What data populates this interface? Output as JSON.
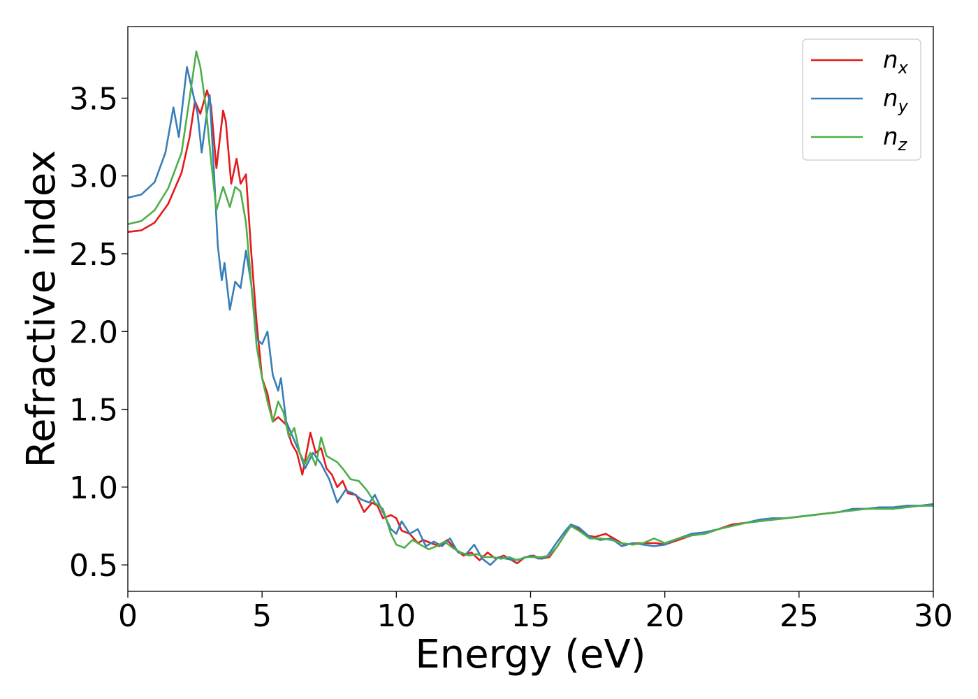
{
  "chart_data": {
    "type": "line",
    "xlabel": "Energy (eV)",
    "ylabel": "Refractive index",
    "xlim": [
      0,
      30
    ],
    "ylim": [
      0.33,
      3.96
    ],
    "xticks": [
      0,
      5,
      10,
      15,
      20,
      25,
      30
    ],
    "xtick_labels": [
      "0",
      "5",
      "10",
      "15",
      "20",
      "25",
      "30"
    ],
    "yticks": [
      0.5,
      1.0,
      1.5,
      2.0,
      2.5,
      3.0,
      3.5
    ],
    "ytick_labels": [
      "0.5",
      "1.0",
      "1.5",
      "2.0",
      "2.5",
      "3.0",
      "3.5"
    ],
    "grid": false,
    "legend_position": "top-right",
    "series": [
      {
        "name": "n_x",
        "label_base": "n",
        "label_sub": "x",
        "color": "#e41a1c",
        "points": [
          [
            0,
            2.64
          ],
          [
            0.5,
            2.65
          ],
          [
            1.0,
            2.7
          ],
          [
            1.5,
            2.82
          ],
          [
            2.0,
            3.02
          ],
          [
            2.3,
            3.25
          ],
          [
            2.5,
            3.48
          ],
          [
            2.7,
            3.4
          ],
          [
            2.95,
            3.55
          ],
          [
            3.1,
            3.45
          ],
          [
            3.3,
            3.05
          ],
          [
            3.55,
            3.42
          ],
          [
            3.65,
            3.35
          ],
          [
            3.85,
            2.95
          ],
          [
            4.05,
            3.11
          ],
          [
            4.2,
            2.95
          ],
          [
            4.4,
            3.01
          ],
          [
            4.6,
            2.5
          ],
          [
            4.8,
            2.05
          ],
          [
            5.0,
            1.7
          ],
          [
            5.2,
            1.6
          ],
          [
            5.4,
            1.42
          ],
          [
            5.6,
            1.45
          ],
          [
            5.9,
            1.4
          ],
          [
            6.1,
            1.28
          ],
          [
            6.3,
            1.22
          ],
          [
            6.5,
            1.08
          ],
          [
            6.8,
            1.35
          ],
          [
            7.0,
            1.22
          ],
          [
            7.2,
            1.25
          ],
          [
            7.4,
            1.12
          ],
          [
            7.6,
            1.08
          ],
          [
            7.8,
            1.0
          ],
          [
            8.0,
            1.04
          ],
          [
            8.2,
            0.96
          ],
          [
            8.5,
            0.95
          ],
          [
            8.8,
            0.84
          ],
          [
            9.1,
            0.9
          ],
          [
            9.3,
            0.88
          ],
          [
            9.5,
            0.8
          ],
          [
            9.8,
            0.82
          ],
          [
            10.0,
            0.8
          ],
          [
            10.2,
            0.72
          ],
          [
            10.5,
            0.7
          ],
          [
            10.8,
            0.64
          ],
          [
            11.0,
            0.66
          ],
          [
            11.3,
            0.64
          ],
          [
            11.6,
            0.62
          ],
          [
            11.9,
            0.66
          ],
          [
            12.2,
            0.6
          ],
          [
            12.5,
            0.56
          ],
          [
            12.8,
            0.58
          ],
          [
            13.1,
            0.53
          ],
          [
            13.4,
            0.58
          ],
          [
            13.7,
            0.54
          ],
          [
            14.0,
            0.56
          ],
          [
            14.3,
            0.53
          ],
          [
            14.5,
            0.51
          ],
          [
            14.8,
            0.55
          ],
          [
            15.1,
            0.56
          ],
          [
            15.4,
            0.54
          ],
          [
            15.7,
            0.55
          ],
          [
            16.0,
            0.62
          ],
          [
            16.3,
            0.7
          ],
          [
            16.5,
            0.75
          ],
          [
            16.8,
            0.73
          ],
          [
            17.1,
            0.69
          ],
          [
            17.4,
            0.68
          ],
          [
            17.8,
            0.7
          ],
          [
            18.1,
            0.67
          ],
          [
            18.5,
            0.63
          ],
          [
            18.9,
            0.64
          ],
          [
            19.3,
            0.64
          ],
          [
            19.7,
            0.64
          ],
          [
            20.0,
            0.63
          ],
          [
            20.5,
            0.66
          ],
          [
            21.0,
            0.69
          ],
          [
            21.5,
            0.7
          ],
          [
            22.0,
            0.73
          ],
          [
            22.5,
            0.76
          ],
          [
            23.0,
            0.77
          ],
          [
            23.5,
            0.78
          ],
          [
            24.0,
            0.79
          ],
          [
            24.5,
            0.8
          ],
          [
            25.0,
            0.81
          ],
          [
            25.5,
            0.82
          ],
          [
            26.0,
            0.83
          ],
          [
            26.5,
            0.84
          ],
          [
            27.0,
            0.86
          ],
          [
            27.5,
            0.86
          ],
          [
            28.0,
            0.87
          ],
          [
            28.5,
            0.86
          ],
          [
            29.0,
            0.88
          ],
          [
            29.5,
            0.88
          ],
          [
            30.0,
            0.89
          ]
        ]
      },
      {
        "name": "n_y",
        "label_base": "n",
        "label_sub": "y",
        "color": "#377eb8",
        "points": [
          [
            0,
            2.86
          ],
          [
            0.5,
            2.88
          ],
          [
            1.0,
            2.96
          ],
          [
            1.4,
            3.15
          ],
          [
            1.7,
            3.44
          ],
          [
            1.9,
            3.25
          ],
          [
            2.2,
            3.7
          ],
          [
            2.4,
            3.55
          ],
          [
            2.6,
            3.4
          ],
          [
            2.75,
            3.15
          ],
          [
            2.9,
            3.35
          ],
          [
            3.05,
            3.52
          ],
          [
            3.2,
            3.05
          ],
          [
            3.35,
            2.55
          ],
          [
            3.5,
            2.33
          ],
          [
            3.6,
            2.44
          ],
          [
            3.8,
            2.14
          ],
          [
            4.0,
            2.32
          ],
          [
            4.2,
            2.28
          ],
          [
            4.4,
            2.52
          ],
          [
            4.6,
            2.3
          ],
          [
            4.8,
            1.95
          ],
          [
            5.0,
            1.92
          ],
          [
            5.2,
            2.0
          ],
          [
            5.4,
            1.72
          ],
          [
            5.6,
            1.62
          ],
          [
            5.7,
            1.7
          ],
          [
            5.9,
            1.42
          ],
          [
            6.2,
            1.3
          ],
          [
            6.4,
            1.22
          ],
          [
            6.6,
            1.12
          ],
          [
            6.9,
            1.22
          ],
          [
            7.2,
            1.15
          ],
          [
            7.5,
            1.05
          ],
          [
            7.8,
            0.9
          ],
          [
            8.1,
            0.98
          ],
          [
            8.4,
            0.96
          ],
          [
            8.7,
            0.92
          ],
          [
            9.0,
            0.9
          ],
          [
            9.2,
            0.95
          ],
          [
            9.5,
            0.84
          ],
          [
            9.8,
            0.73
          ],
          [
            10.0,
            0.7
          ],
          [
            10.2,
            0.78
          ],
          [
            10.5,
            0.7
          ],
          [
            10.8,
            0.73
          ],
          [
            11.1,
            0.62
          ],
          [
            11.4,
            0.65
          ],
          [
            11.7,
            0.62
          ],
          [
            12.0,
            0.67
          ],
          [
            12.3,
            0.58
          ],
          [
            12.6,
            0.57
          ],
          [
            12.9,
            0.63
          ],
          [
            13.2,
            0.54
          ],
          [
            13.5,
            0.5
          ],
          [
            13.8,
            0.55
          ],
          [
            14.1,
            0.54
          ],
          [
            14.4,
            0.53
          ],
          [
            14.7,
            0.54
          ],
          [
            15.0,
            0.56
          ],
          [
            15.3,
            0.54
          ],
          [
            15.6,
            0.55
          ],
          [
            16.0,
            0.65
          ],
          [
            16.3,
            0.72
          ],
          [
            16.5,
            0.76
          ],
          [
            16.8,
            0.74
          ],
          [
            17.2,
            0.68
          ],
          [
            17.6,
            0.66
          ],
          [
            18.0,
            0.67
          ],
          [
            18.4,
            0.62
          ],
          [
            18.8,
            0.64
          ],
          [
            19.2,
            0.63
          ],
          [
            19.6,
            0.62
          ],
          [
            20.0,
            0.63
          ],
          [
            20.5,
            0.67
          ],
          [
            21.0,
            0.7
          ],
          [
            21.5,
            0.71
          ],
          [
            22.0,
            0.73
          ],
          [
            22.5,
            0.75
          ],
          [
            23.0,
            0.77
          ],
          [
            23.5,
            0.79
          ],
          [
            24.0,
            0.8
          ],
          [
            24.5,
            0.8
          ],
          [
            25.0,
            0.81
          ],
          [
            25.5,
            0.82
          ],
          [
            26.0,
            0.83
          ],
          [
            26.5,
            0.84
          ],
          [
            27.0,
            0.86
          ],
          [
            27.5,
            0.86
          ],
          [
            28.0,
            0.87
          ],
          [
            28.5,
            0.87
          ],
          [
            29.0,
            0.88
          ],
          [
            29.5,
            0.88
          ],
          [
            30.0,
            0.89
          ]
        ]
      },
      {
        "name": "n_z",
        "label_base": "n",
        "label_sub": "z",
        "color": "#4daf4a",
        "points": [
          [
            0,
            2.69
          ],
          [
            0.5,
            2.71
          ],
          [
            1.0,
            2.78
          ],
          [
            1.5,
            2.92
          ],
          [
            2.0,
            3.15
          ],
          [
            2.3,
            3.5
          ],
          [
            2.55,
            3.8
          ],
          [
            2.7,
            3.7
          ],
          [
            2.9,
            3.45
          ],
          [
            3.1,
            3.1
          ],
          [
            3.3,
            2.78
          ],
          [
            3.55,
            2.93
          ],
          [
            3.8,
            2.8
          ],
          [
            4.0,
            2.93
          ],
          [
            4.2,
            2.9
          ],
          [
            4.4,
            2.7
          ],
          [
            4.6,
            2.3
          ],
          [
            4.8,
            1.9
          ],
          [
            5.0,
            1.7
          ],
          [
            5.2,
            1.55
          ],
          [
            5.4,
            1.42
          ],
          [
            5.6,
            1.55
          ],
          [
            5.8,
            1.48
          ],
          [
            6.0,
            1.32
          ],
          [
            6.2,
            1.38
          ],
          [
            6.4,
            1.22
          ],
          [
            6.6,
            1.15
          ],
          [
            6.8,
            1.22
          ],
          [
            7.0,
            1.14
          ],
          [
            7.2,
            1.32
          ],
          [
            7.4,
            1.2
          ],
          [
            7.6,
            1.18
          ],
          [
            7.8,
            1.16
          ],
          [
            8.0,
            1.12
          ],
          [
            8.3,
            1.05
          ],
          [
            8.6,
            1.04
          ],
          [
            8.9,
            0.98
          ],
          [
            9.2,
            0.9
          ],
          [
            9.5,
            0.86
          ],
          [
            9.8,
            0.7
          ],
          [
            10.0,
            0.63
          ],
          [
            10.3,
            0.61
          ],
          [
            10.6,
            0.66
          ],
          [
            10.9,
            0.63
          ],
          [
            11.2,
            0.6
          ],
          [
            11.5,
            0.62
          ],
          [
            11.8,
            0.65
          ],
          [
            12.1,
            0.61
          ],
          [
            12.4,
            0.58
          ],
          [
            12.7,
            0.56
          ],
          [
            13.0,
            0.57
          ],
          [
            13.3,
            0.55
          ],
          [
            13.6,
            0.55
          ],
          [
            13.9,
            0.54
          ],
          [
            14.2,
            0.55
          ],
          [
            14.5,
            0.53
          ],
          [
            14.8,
            0.55
          ],
          [
            15.1,
            0.55
          ],
          [
            15.4,
            0.55
          ],
          [
            15.7,
            0.56
          ],
          [
            16.0,
            0.62
          ],
          [
            16.3,
            0.7
          ],
          [
            16.5,
            0.75
          ],
          [
            16.8,
            0.72
          ],
          [
            17.2,
            0.67
          ],
          [
            17.6,
            0.67
          ],
          [
            18.0,
            0.66
          ],
          [
            18.4,
            0.64
          ],
          [
            18.8,
            0.63
          ],
          [
            19.2,
            0.64
          ],
          [
            19.6,
            0.67
          ],
          [
            20.0,
            0.64
          ],
          [
            20.5,
            0.67
          ],
          [
            21.0,
            0.69
          ],
          [
            21.5,
            0.7
          ],
          [
            22.0,
            0.73
          ],
          [
            22.5,
            0.75
          ],
          [
            23.0,
            0.77
          ],
          [
            23.5,
            0.78
          ],
          [
            24.0,
            0.79
          ],
          [
            24.5,
            0.8
          ],
          [
            25.0,
            0.81
          ],
          [
            25.5,
            0.82
          ],
          [
            26.0,
            0.83
          ],
          [
            26.5,
            0.84
          ],
          [
            27.0,
            0.85
          ],
          [
            27.5,
            0.86
          ],
          [
            28.0,
            0.86
          ],
          [
            28.5,
            0.86
          ],
          [
            29.0,
            0.87
          ],
          [
            29.5,
            0.88
          ],
          [
            30.0,
            0.88
          ]
        ]
      }
    ]
  }
}
